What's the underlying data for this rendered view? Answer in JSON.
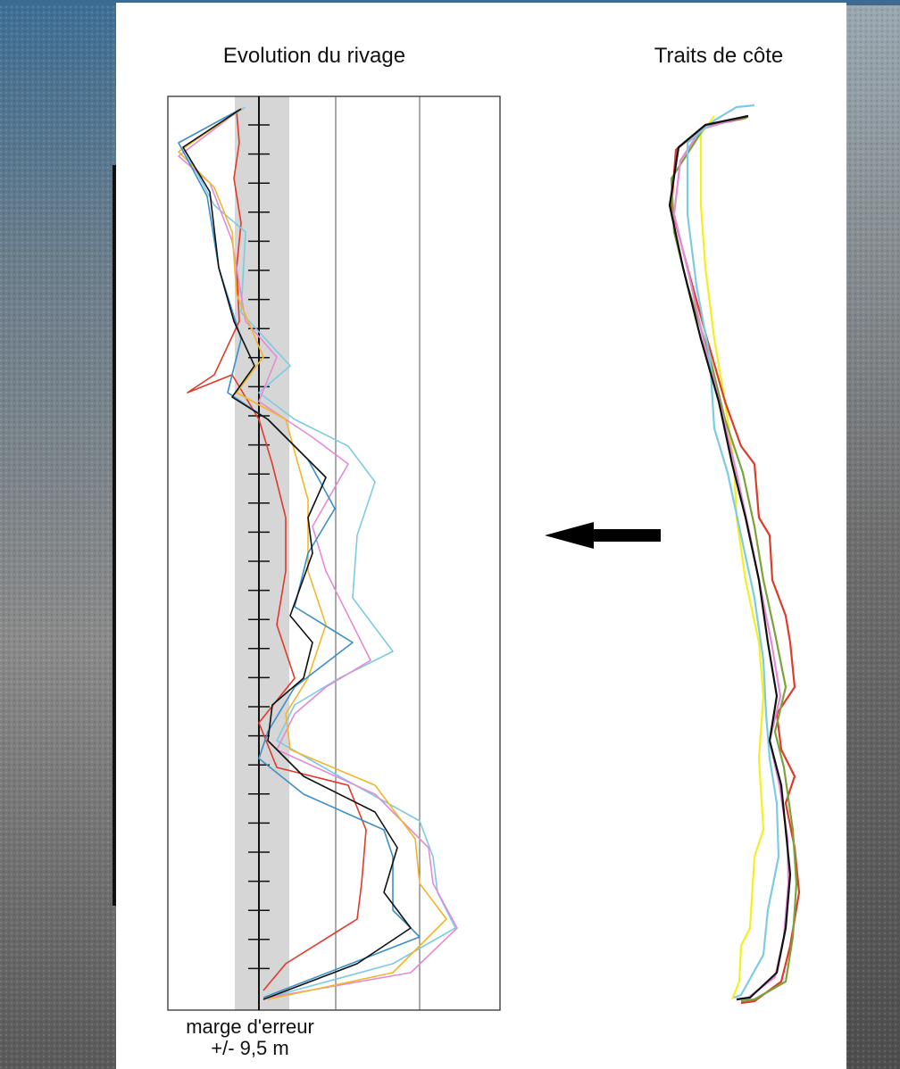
{
  "left_panel": {
    "title": "Evolution du rivage",
    "caption": [
      "marge d'erreur",
      "+/- 9,5 m"
    ]
  },
  "right_panel": {
    "title": "Traits de côte"
  }
}
